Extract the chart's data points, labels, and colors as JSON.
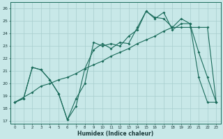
{
  "xlabel": "Humidex (Indice chaleur)",
  "background_color": "#c8e8e8",
  "grid_color": "#a8cece",
  "line_color": "#1a6b5a",
  "xlim": [
    -0.5,
    23.5
  ],
  "ylim": [
    16.8,
    26.5
  ],
  "xticks": [
    0,
    1,
    2,
    3,
    4,
    5,
    6,
    7,
    8,
    9,
    10,
    11,
    12,
    13,
    14,
    15,
    16,
    17,
    18,
    19,
    20,
    21,
    22,
    23
  ],
  "yticks": [
    17,
    18,
    19,
    20,
    21,
    22,
    23,
    24,
    25,
    26
  ],
  "series1": {
    "x": [
      0,
      1,
      2,
      3,
      4,
      5,
      6,
      7,
      8,
      9,
      10,
      11,
      12,
      13,
      14,
      15,
      16,
      17,
      18,
      19,
      20,
      21,
      22,
      23
    ],
    "y": [
      18.5,
      18.8,
      21.3,
      21.1,
      20.3,
      19.2,
      17.1,
      18.2,
      21.2,
      22.7,
      23.2,
      22.8,
      23.3,
      23.2,
      24.5,
      25.8,
      25.2,
      25.7,
      24.3,
      24.8,
      24.8,
      22.5,
      20.5,
      18.5
    ]
  },
  "series2": {
    "x": [
      0,
      1,
      2,
      3,
      4,
      5,
      6,
      7,
      8,
      9,
      10,
      11,
      12,
      13,
      14,
      15,
      16,
      17,
      18,
      19,
      20,
      21,
      22,
      23
    ],
    "y": [
      18.5,
      18.8,
      21.3,
      21.1,
      20.3,
      19.2,
      17.1,
      18.8,
      20.0,
      23.3,
      23.0,
      23.2,
      23.0,
      23.8,
      24.3,
      25.8,
      25.3,
      25.2,
      24.5,
      25.2,
      24.8,
      20.5,
      18.5,
      18.5
    ]
  },
  "series3": {
    "x": [
      0,
      2,
      3,
      4,
      5,
      6,
      7,
      8,
      9,
      10,
      11,
      12,
      13,
      14,
      15,
      16,
      17,
      18,
      19,
      20,
      21,
      22,
      23
    ],
    "y": [
      18.5,
      19.3,
      19.8,
      20.0,
      20.3,
      20.5,
      20.8,
      21.2,
      21.5,
      21.8,
      22.2,
      22.5,
      22.8,
      23.2,
      23.5,
      23.8,
      24.2,
      24.5,
      24.5,
      24.5,
      24.5,
      24.5,
      18.5
    ]
  }
}
